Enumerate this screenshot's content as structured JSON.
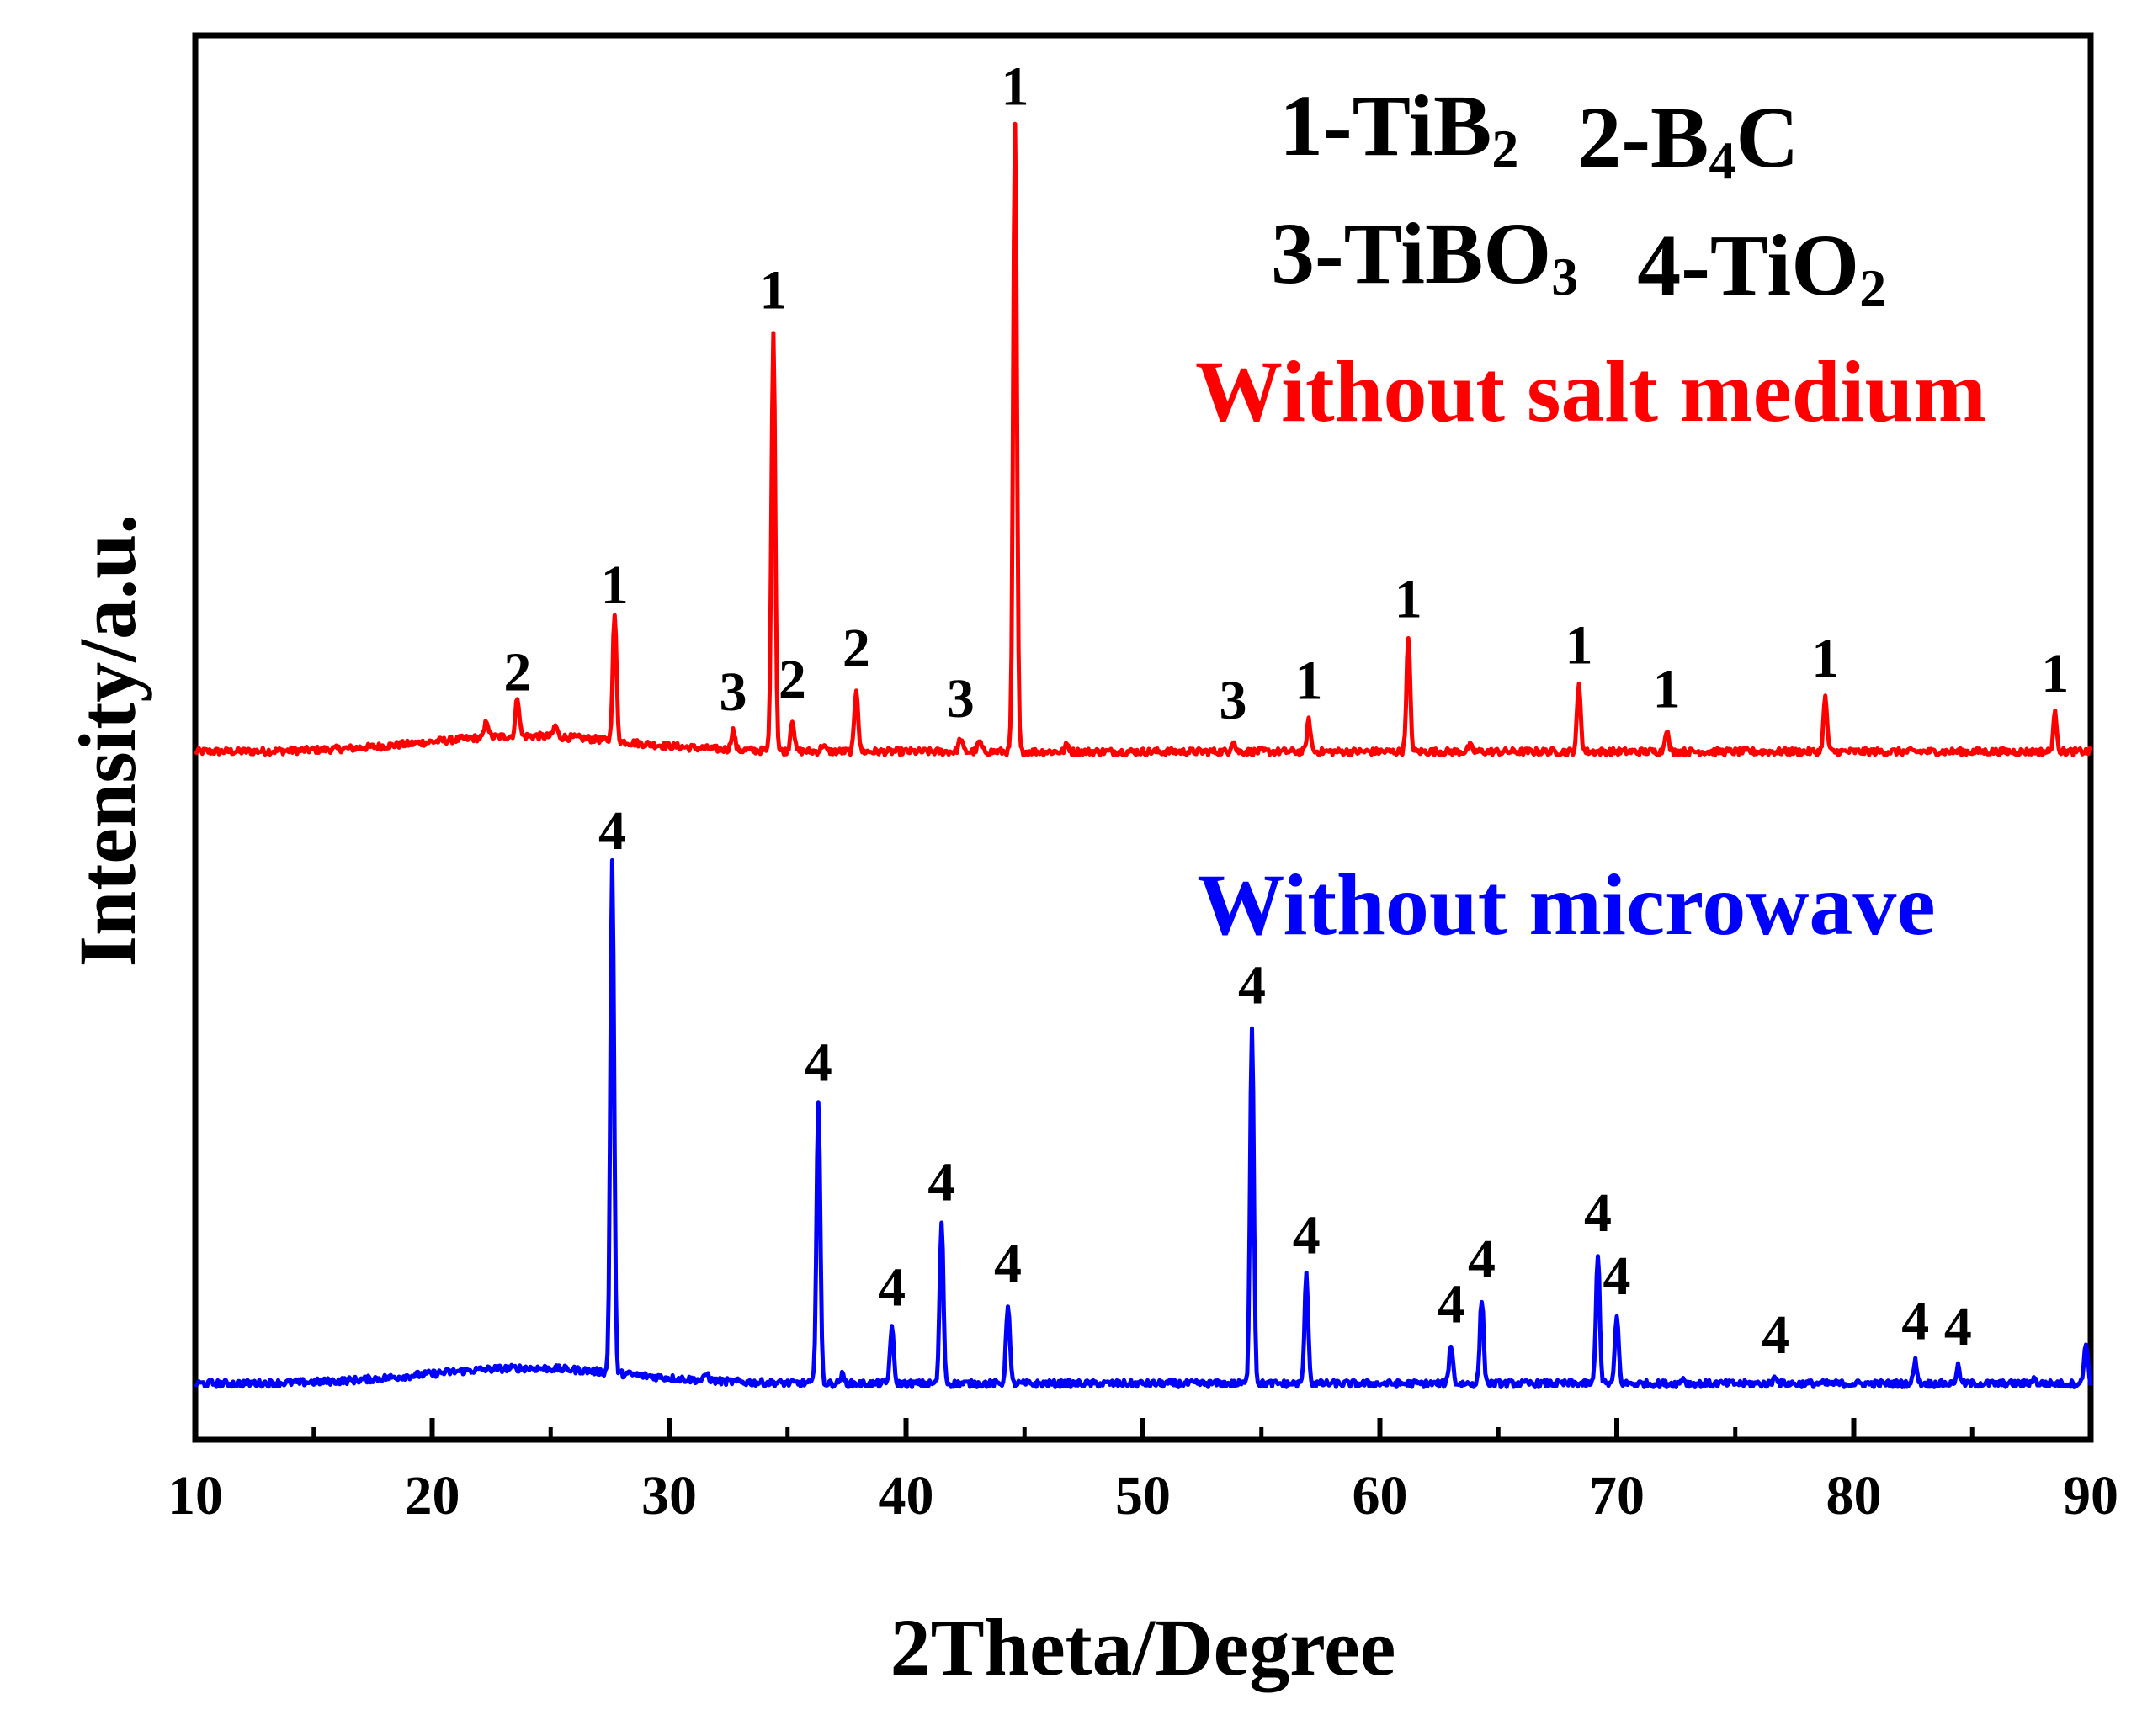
{
  "chart_data": {
    "type": "line",
    "title": "",
    "xlabel": "2Theta/Degree",
    "ylabel": "Intensity/a.u.",
    "xlim": [
      10,
      90
    ],
    "ylim": [
      0,
      10
    ],
    "x_ticks": [
      10,
      20,
      30,
      40,
      50,
      60,
      70,
      80,
      90
    ],
    "yticks_shown": false,
    "legend": [
      {
        "id": "l1",
        "number": "1",
        "name": "TiB",
        "subscript": "2"
      },
      {
        "id": "l2",
        "number": "2",
        "name": "B",
        "subscript": "4",
        "suffix": "C"
      },
      {
        "id": "l3",
        "number": "3",
        "name": "TiBO",
        "subscript": "3"
      },
      {
        "id": "l4",
        "number": "4",
        "name": "TiO",
        "subscript": "2"
      }
    ],
    "series": [
      {
        "name": "Without salt medium",
        "color": "#ff0000",
        "baseline": 4.9,
        "peaks": [
          {
            "x": 22.3,
            "h": 0.12,
            "label": ""
          },
          {
            "x": 23.6,
            "h": 0.28,
            "label": "2"
          },
          {
            "x": 25.2,
            "h": 0.08,
            "label": ""
          },
          {
            "x": 27.7,
            "h": 0.9,
            "label": "1"
          },
          {
            "x": 32.7,
            "h": 0.14,
            "label": "3"
          },
          {
            "x": 34.4,
            "h": 3.0,
            "label": "1"
          },
          {
            "x": 35.2,
            "h": 0.23,
            "label": "2"
          },
          {
            "x": 36.5,
            "h": 0.05,
            "label": ""
          },
          {
            "x": 37.9,
            "h": 0.45,
            "label": "2"
          },
          {
            "x": 42.3,
            "h": 0.09,
            "label": "3"
          },
          {
            "x": 43.1,
            "h": 0.07,
            "label": ""
          },
          {
            "x": 44.6,
            "h": 4.45,
            "label": "1"
          },
          {
            "x": 46.8,
            "h": 0.05,
            "label": ""
          },
          {
            "x": 53.8,
            "h": 0.08,
            "label": "3"
          },
          {
            "x": 57.0,
            "h": 0.22,
            "label": "1"
          },
          {
            "x": 61.2,
            "h": 0.8,
            "label": "1"
          },
          {
            "x": 63.8,
            "h": 0.04,
            "label": ""
          },
          {
            "x": 68.4,
            "h": 0.47,
            "label": "1"
          },
          {
            "x": 72.1,
            "h": 0.16,
            "label": "1"
          },
          {
            "x": 78.8,
            "h": 0.38,
            "label": "1"
          },
          {
            "x": 88.5,
            "h": 0.27,
            "label": "1"
          }
        ]
      },
      {
        "name": "Without microwave",
        "color": "#0000ff",
        "baseline": 0.4,
        "peaks": [
          {
            "x": 27.6,
            "h": 3.65,
            "label": "4"
          },
          {
            "x": 31.6,
            "h": 0.05,
            "label": ""
          },
          {
            "x": 36.3,
            "h": 2.0,
            "label": "4"
          },
          {
            "x": 37.3,
            "h": 0.06,
            "label": ""
          },
          {
            "x": 39.4,
            "h": 0.4,
            "label": "4"
          },
          {
            "x": 41.5,
            "h": 1.15,
            "label": "4"
          },
          {
            "x": 44.3,
            "h": 0.57,
            "label": "4"
          },
          {
            "x": 54.6,
            "h": 2.55,
            "label": "4"
          },
          {
            "x": 56.9,
            "h": 0.77,
            "label": "4"
          },
          {
            "x": 63.0,
            "h": 0.28,
            "label": "4"
          },
          {
            "x": 64.3,
            "h": 0.6,
            "label": "4"
          },
          {
            "x": 69.2,
            "h": 0.93,
            "label": "4"
          },
          {
            "x": 70.0,
            "h": 0.48,
            "label": "4"
          },
          {
            "x": 72.8,
            "h": 0.04,
            "label": ""
          },
          {
            "x": 76.7,
            "h": 0.06,
            "label": "4"
          },
          {
            "x": 82.6,
            "h": 0.16,
            "label": "4"
          },
          {
            "x": 84.4,
            "h": 0.12,
            "label": "4"
          },
          {
            "x": 87.6,
            "h": 0.04,
            "label": ""
          },
          {
            "x": 89.8,
            "h": 0.3,
            "label": ""
          }
        ]
      }
    ]
  }
}
